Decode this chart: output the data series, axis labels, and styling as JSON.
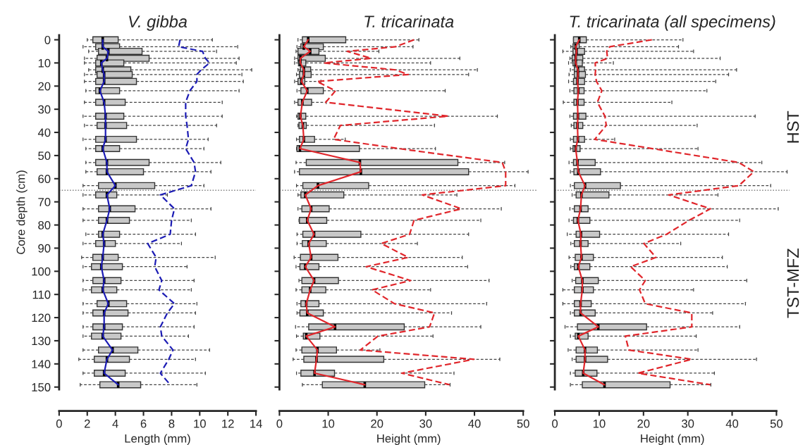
{
  "chart_data": [
    {
      "type": "box",
      "title": "V. gibba",
      "xlabel": "Length (mm)",
      "ylabel": "Core depth (cm)",
      "orientation": "horizontal",
      "x": [
        0,
        3,
        5,
        8,
        10,
        13,
        15,
        18,
        22,
        27,
        33,
        37,
        43,
        47,
        53,
        57,
        63,
        67,
        73,
        78,
        84,
        88,
        94,
        98,
        104,
        108,
        114,
        118,
        124,
        128,
        134,
        138,
        144,
        149
      ],
      "boxes": [
        {
          "low": 2.0,
          "q1": 2.4,
          "median": 3.1,
          "q3": 4.2,
          "high": 10.9
        },
        {
          "low": 1.7,
          "q1": 2.6,
          "median": 3.1,
          "q3": 4.3,
          "high": 12.7
        },
        {
          "low": 2.1,
          "q1": 2.8,
          "median": 3.5,
          "q3": 5.9,
          "high": 11.2
        },
        {
          "low": 1.8,
          "q1": 2.7,
          "median": 3.4,
          "q3": 6.4,
          "high": 12.8
        },
        {
          "low": 1.8,
          "q1": 2.6,
          "median": 3.0,
          "q3": 4.6,
          "high": 12.6
        },
        {
          "low": 2.1,
          "q1": 2.6,
          "median": 3.1,
          "q3": 5.1,
          "high": 13.7
        },
        {
          "low": 1.8,
          "q1": 2.7,
          "median": 3.2,
          "q3": 5.2,
          "high": 13.0
        },
        {
          "low": 1.8,
          "q1": 2.6,
          "median": 3.2,
          "q3": 5.5,
          "high": 13.1
        },
        {
          "low": 1.9,
          "q1": 2.6,
          "median": 2.9,
          "q3": 4.3,
          "high": 12.8
        },
        {
          "low": 1.8,
          "q1": 2.6,
          "median": 3.2,
          "q3": 4.7,
          "high": 11.6
        },
        {
          "low": 1.7,
          "q1": 2.6,
          "median": 3.3,
          "q3": 4.6,
          "high": 11.6
        },
        {
          "low": 1.8,
          "q1": 2.7,
          "median": 3.3,
          "q3": 4.8,
          "high": 11.2
        },
        {
          "low": 1.7,
          "q1": 2.6,
          "median": 3.3,
          "q3": 5.5,
          "high": 10.6
        },
        {
          "low": 1.9,
          "q1": 2.6,
          "median": 3.1,
          "q3": 4.3,
          "high": 10.3
        },
        {
          "low": 1.9,
          "q1": 2.6,
          "median": 3.4,
          "q3": 6.4,
          "high": 11.5
        },
        {
          "low": 1.9,
          "q1": 2.7,
          "median": 3.4,
          "q3": 6.0,
          "high": 10.8
        },
        {
          "low": 1.7,
          "q1": 2.8,
          "median": 4.0,
          "q3": 6.8,
          "high": 10.3
        },
        {
          "low": 1.7,
          "q1": 2.6,
          "median": 3.4,
          "q3": 4.1,
          "high": 7.7
        },
        {
          "low": 1.7,
          "q1": 2.8,
          "median": 3.6,
          "q3": 5.4,
          "high": 10.8
        },
        {
          "low": 1.7,
          "q1": 2.8,
          "median": 3.4,
          "q3": 5.0,
          "high": 9.4
        },
        {
          "low": 1.9,
          "q1": 2.8,
          "median": 3.1,
          "q3": 4.3,
          "high": 9.7
        },
        {
          "low": 1.7,
          "q1": 2.6,
          "median": 3.2,
          "q3": 4.0,
          "high": 8.7
        },
        {
          "low": 1.6,
          "q1": 2.4,
          "median": 3.1,
          "q3": 4.2,
          "high": 11.1
        },
        {
          "low": 1.7,
          "q1": 2.3,
          "median": 3.0,
          "q3": 4.5,
          "high": 9.1
        },
        {
          "low": 1.7,
          "q1": 2.4,
          "median": 3.2,
          "q3": 4.4,
          "high": 9.6
        },
        {
          "low": 1.7,
          "q1": 2.3,
          "median": 3.1,
          "q3": 4.1,
          "high": 9.4
        },
        {
          "low": 1.7,
          "q1": 2.7,
          "median": 3.5,
          "q3": 4.8,
          "high": 9.8
        },
        {
          "low": 1.7,
          "q1": 2.4,
          "median": 3.2,
          "q3": 4.9,
          "high": 9.7
        },
        {
          "low": 1.7,
          "q1": 2.4,
          "median": 3.2,
          "q3": 4.5,
          "high": 9.6
        },
        {
          "low": 1.7,
          "q1": 2.3,
          "median": 3.1,
          "q3": 4.4,
          "high": 9.2
        },
        {
          "low": 1.7,
          "q1": 2.8,
          "median": 3.8,
          "q3": 5.6,
          "high": 10.7
        },
        {
          "low": 1.4,
          "q1": 2.5,
          "median": 3.4,
          "q3": 5.0,
          "high": 9.7
        },
        {
          "low": 1.7,
          "q1": 2.5,
          "median": 3.2,
          "q3": 4.7,
          "high": 10.4
        },
        {
          "low": 1.5,
          "q1": 2.9,
          "median": 4.2,
          "q3": 5.8,
          "high": 9.8
        }
      ],
      "series": [
        {
          "type": "line",
          "color": "#1c1cb4",
          "line_style": "solid",
          "values": [
            3.1,
            3.1,
            3.5,
            3.4,
            3.0,
            3.1,
            3.2,
            3.2,
            2.9,
            3.2,
            3.3,
            3.3,
            3.3,
            3.1,
            3.4,
            3.4,
            4.0,
            3.4,
            3.6,
            3.4,
            3.1,
            3.2,
            3.1,
            3.0,
            3.2,
            3.1,
            3.5,
            3.2,
            3.2,
            3.1,
            3.8,
            3.4,
            3.2,
            4.2
          ]
        },
        {
          "type": "line",
          "color": "#1c1cb4",
          "line_style": "dashed",
          "values": [
            8.6,
            8.5,
            10.2,
            10.4,
            10.7,
            10.1,
            9.8,
            9.8,
            9.3,
            9.0,
            9.0,
            9.1,
            9.2,
            9.0,
            9.6,
            9.7,
            9.4,
            7.2,
            8.2,
            8.0,
            7.9,
            6.3,
            6.9,
            6.8,
            7.3,
            7.1,
            8.2,
            7.7,
            7.2,
            7.3,
            8.1,
            7.8,
            7.2,
            7.9
          ]
        }
      ],
      "xlim": [
        0,
        14
      ],
      "xticks": [
        0,
        2,
        4,
        6,
        8,
        10,
        12,
        14
      ],
      "ylim": [
        151,
        -2
      ],
      "yticks": [
        0,
        10,
        20,
        30,
        40,
        50,
        60,
        70,
        80,
        90,
        100,
        110,
        120,
        130,
        140,
        150
      ],
      "ref_lines": [
        {
          "axis": "y",
          "value": 65,
          "color": "#808080",
          "line_style": "dotted"
        }
      ]
    },
    {
      "type": "box",
      "title": "T. tricarinata",
      "xlabel": "Height (mm)",
      "orientation": "horizontal",
      "x": [
        0,
        3,
        5,
        8,
        10,
        13,
        15,
        18,
        22,
        27,
        33,
        37,
        43,
        47,
        53,
        57,
        63,
        67,
        73,
        78,
        84,
        88,
        94,
        98,
        104,
        108,
        114,
        118,
        124,
        128,
        134,
        138,
        144,
        149
      ],
      "boxes": [
        {
          "low": 3.8,
          "q1": 4.7,
          "median": 5.9,
          "q3": 13.6,
          "high": 28.6
        },
        {
          "low": 3.6,
          "q1": 4.4,
          "median": 5.0,
          "q3": 9.0,
          "high": 27.4
        },
        {
          "low": 3.4,
          "q1": 3.8,
          "median": 6.3,
          "q3": 8.1,
          "high": 20.4
        },
        {
          "low": 3.1,
          "q1": 3.8,
          "median": 4.3,
          "q3": 9.4,
          "high": 37.0
        },
        {
          "low": 3.1,
          "q1": 3.9,
          "median": 4.3,
          "q3": 5.4,
          "high": 31.0
        },
        {
          "low": 3.8,
          "q1": 4.3,
          "median": 5.0,
          "q3": 6.4,
          "high": 40.6
        },
        {
          "low": 3.5,
          "q1": 4.1,
          "median": 5.0,
          "q3": 6.5,
          "high": 38.8
        },
        {
          "low": 3.1,
          "q1": 3.8,
          "median": 4.5,
          "q3": 5.2,
          "high": 8.5
        },
        {
          "low": 3.6,
          "q1": 4.4,
          "median": 5.7,
          "q3": 9.0,
          "high": 34.0
        },
        {
          "low": 3.1,
          "q1": 3.8,
          "median": 4.7,
          "q3": 6.6,
          "high": 9.6
        },
        {
          "low": 3.5,
          "q1": 3.8,
          "median": 4.3,
          "q3": 5.4,
          "high": 44.7
        },
        {
          "low": 3.8,
          "q1": 4.0,
          "median": 4.8,
          "q3": 5.5,
          "high": 31.8
        },
        {
          "low": 3.5,
          "q1": 4.1,
          "median": 5.0,
          "q3": 7.2,
          "high": 13.5
        },
        {
          "low": 3.5,
          "q1": 3.6,
          "median": 4.2,
          "q3": 16.4,
          "high": 32.0
        },
        {
          "low": 3.4,
          "q1": 5.5,
          "median": 16.5,
          "q3": 36.6,
          "high": 46.2
        },
        {
          "low": 3.1,
          "q1": 4.1,
          "median": 16.7,
          "q3": 38.8,
          "high": 51.0
        },
        {
          "low": 3.5,
          "q1": 4.8,
          "median": 7.9,
          "q3": 18.3,
          "high": 48.3
        },
        {
          "low": 3.8,
          "q1": 4.4,
          "median": 5.3,
          "q3": 13.2,
          "high": 36.4
        },
        {
          "low": 3.8,
          "q1": 4.6,
          "median": 6.5,
          "q3": 10.2,
          "high": 45.5
        },
        {
          "low": 4.0,
          "q1": 4.1,
          "median": 5.7,
          "q3": 9.7,
          "high": 41.3
        },
        {
          "low": 3.6,
          "q1": 4.8,
          "median": 7.1,
          "q3": 16.7,
          "high": 38.8
        },
        {
          "low": 3.6,
          "q1": 4.7,
          "median": 6.0,
          "q3": 9.6,
          "high": 28.3
        },
        {
          "low": 3.0,
          "q1": 4.3,
          "median": 6.5,
          "q3": 12.0,
          "high": 37.5
        },
        {
          "low": 3.4,
          "q1": 4.2,
          "median": 5.3,
          "q3": 8.1,
          "high": 38.6
        },
        {
          "low": 4.0,
          "q1": 4.6,
          "median": 7.1,
          "q3": 12.1,
          "high": 43.0
        },
        {
          "low": 3.4,
          "q1": 4.6,
          "median": 6.3,
          "q3": 9.5,
          "high": 31.0
        },
        {
          "low": 3.6,
          "q1": 4.4,
          "median": 5.5,
          "q3": 8.1,
          "high": 42.5
        },
        {
          "low": 3.6,
          "q1": 4.2,
          "median": 5.7,
          "q3": 9.0,
          "high": 35.3
        },
        {
          "low": 3.3,
          "q1": 6.0,
          "median": 11.4,
          "q3": 25.6,
          "high": 41.3
        },
        {
          "low": 3.5,
          "q1": 4.9,
          "median": 5.5,
          "q3": 8.3,
          "high": 31.5
        },
        {
          "low": 3.4,
          "q1": 4.6,
          "median": 7.8,
          "q3": 11.7,
          "high": 20.6
        },
        {
          "low": 2.8,
          "q1": 5.0,
          "median": 7.6,
          "q3": 21.4,
          "high": 45.2
        },
        {
          "low": 3.5,
          "q1": 4.4,
          "median": 7.2,
          "q3": 11.3,
          "high": 35.8
        },
        {
          "low": 4.7,
          "q1": 8.8,
          "median": 17.5,
          "q3": 29.8,
          "high": 35.0
        }
      ],
      "series": [
        {
          "type": "line",
          "color": "#e0262b",
          "line_style": "solid",
          "values": [
            5.9,
            5.0,
            6.3,
            4.3,
            4.3,
            5.0,
            5.0,
            4.5,
            5.7,
            4.7,
            4.3,
            4.8,
            5.0,
            4.2,
            16.5,
            16.7,
            7.9,
            5.3,
            6.5,
            5.7,
            7.1,
            6.0,
            6.5,
            5.3,
            7.1,
            6.3,
            5.5,
            5.7,
            11.4,
            5.5,
            7.8,
            7.6,
            7.2,
            17.5
          ]
        },
        {
          "type": "line",
          "color": "#e0262b",
          "line_style": "dashed",
          "values": [
            27.6,
            23.8,
            13.9,
            18.8,
            9.1,
            23.8,
            26.4,
            7.7,
            11.5,
            9.5,
            34.6,
            12.5,
            11.1,
            24.5,
            45.7,
            46.4,
            46.4,
            29.3,
            37.3,
            27.6,
            26.7,
            20.9,
            26.4,
            17.8,
            26.9,
            19.0,
            23.6,
            31.8,
            30.8,
            20.2,
            16.6,
            39.9,
            25.1,
            34.9
          ]
        }
      ],
      "xlim": [
        0,
        53
      ],
      "xticks": [
        0,
        10,
        20,
        30,
        40,
        50
      ],
      "ylim": [
        151,
        -2
      ],
      "yticks": [
        0,
        10,
        20,
        30,
        40,
        50,
        60,
        70,
        80,
        90,
        100,
        110,
        120,
        130,
        140,
        150
      ],
      "tick_labels": "x",
      "ref_lines": [
        {
          "axis": "y",
          "value": 65,
          "color": "#808080",
          "line_style": "dotted"
        }
      ]
    },
    {
      "type": "box",
      "title": "T. tricarinata (all specimens)",
      "xlabel": "Height (mm)",
      "orientation": "horizontal",
      "x": [
        0,
        3,
        5,
        8,
        10,
        13,
        15,
        18,
        22,
        27,
        33,
        37,
        43,
        47,
        53,
        57,
        63,
        67,
        73,
        78,
        84,
        88,
        94,
        98,
        104,
        108,
        114,
        118,
        124,
        128,
        134,
        138,
        144,
        149
      ],
      "boxes": [
        {
          "low": 4.2,
          "q1": 4.2,
          "median": 5.5,
          "q3": 7.1,
          "high": 28.9
        },
        {
          "low": 3.6,
          "q1": 4.1,
          "median": 4.7,
          "q3": 5.5,
          "high": 27.9
        },
        {
          "low": 1.8,
          "q1": 4.1,
          "median": 4.9,
          "q3": 6.7,
          "high": 31.3
        },
        {
          "low": 3.4,
          "q1": 3.9,
          "median": 4.7,
          "q3": 6.3,
          "high": 37.3
        },
        {
          "low": 3.1,
          "q1": 4.1,
          "median": 4.7,
          "q3": 6.2,
          "high": 13.2
        },
        {
          "low": 3.5,
          "q1": 4.4,
          "median": 5.2,
          "q3": 6.7,
          "high": 41.0
        },
        {
          "low": 3.2,
          "q1": 4.4,
          "median": 5.2,
          "q3": 6.9,
          "high": 39.2
        },
        {
          "low": 3.1,
          "q1": 4.2,
          "median": 5.1,
          "q3": 6.7,
          "high": 36.3
        },
        {
          "low": 3.4,
          "q1": 4.3,
          "median": 5.3,
          "q3": 6.6,
          "high": 34.3
        },
        {
          "low": 1.9,
          "q1": 4.3,
          "median": 5.1,
          "q3": 6.6,
          "high": 26.4
        },
        {
          "low": 3.4,
          "q1": 4.2,
          "median": 5.2,
          "q3": 7.0,
          "high": 45.2
        },
        {
          "low": 3.7,
          "q1": 4.3,
          "median": 5.1,
          "q3": 6.3,
          "high": 32.1
        },
        {
          "low": 3.5,
          "q1": 4.2,
          "median": 5.2,
          "q3": 6.7,
          "high": 13.5
        },
        {
          "low": 3.5,
          "q1": 4.1,
          "median": 4.7,
          "q3": 5.7,
          "high": 32.3
        },
        {
          "low": 3.2,
          "q1": 4.2,
          "median": 5.1,
          "q3": 9.1,
          "high": 46.7
        },
        {
          "low": 3.5,
          "q1": 4.3,
          "median": 5.3,
          "q3": 10.3,
          "high": 52.4
        },
        {
          "low": 3.5,
          "q1": 4.4,
          "median": 6.8,
          "q3": 14.8,
          "high": 48.7
        },
        {
          "low": 3.9,
          "q1": 4.8,
          "median": 6.0,
          "q3": 12.2,
          "high": 36.8
        },
        {
          "low": 3.4,
          "q1": 4.4,
          "median": 5.8,
          "q3": 7.5,
          "high": 50.4
        },
        {
          "low": 3.2,
          "q1": 4.2,
          "median": 5.2,
          "q3": 7.9,
          "high": 41.7
        },
        {
          "low": 2.8,
          "q1": 4.8,
          "median": 5.9,
          "q3": 10.1,
          "high": 39.2
        },
        {
          "low": 3.6,
          "q1": 4.4,
          "median": 5.8,
          "q3": 7.5,
          "high": 28.4
        },
        {
          "low": 3.2,
          "q1": 4.6,
          "median": 6.0,
          "q3": 8.7,
          "high": 37.8
        },
        {
          "low": 3.6,
          "q1": 4.4,
          "median": 5.3,
          "q3": 7.9,
          "high": 38.9
        },
        {
          "low": 3.9,
          "q1": 4.7,
          "median": 6.2,
          "q3": 9.8,
          "high": 43.3
        },
        {
          "low": 1.8,
          "q1": 4.4,
          "median": 6.2,
          "q3": 8.7,
          "high": 31.3
        },
        {
          "low": 1.8,
          "q1": 4.4,
          "median": 5.8,
          "q3": 8.2,
          "high": 43.0
        },
        {
          "low": 3.5,
          "q1": 4.4,
          "median": 5.8,
          "q3": 9.1,
          "high": 35.6
        },
        {
          "low": 2.3,
          "q1": 5.1,
          "median": 9.8,
          "q3": 20.7,
          "high": 41.7
        },
        {
          "low": 3.5,
          "q1": 4.6,
          "median": 5.3,
          "q3": 7.5,
          "high": 31.9
        },
        {
          "low": 3.0,
          "q1": 4.8,
          "median": 6.8,
          "q3": 9.6,
          "high": 32.3
        },
        {
          "low": 3.9,
          "q1": 4.8,
          "median": 6.8,
          "q3": 11.9,
          "high": 45.5
        },
        {
          "low": 3.5,
          "q1": 4.6,
          "median": 6.4,
          "q3": 9.5,
          "high": 36.0
        },
        {
          "low": 3.5,
          "q1": 6.2,
          "median": 11.2,
          "q3": 26.0,
          "high": 35.2
        }
      ],
      "series": [
        {
          "type": "line",
          "color": "#e0262b",
          "line_style": "solid",
          "values": [
            5.5,
            4.7,
            4.9,
            4.7,
            4.7,
            5.2,
            5.2,
            5.1,
            5.3,
            5.1,
            5.2,
            5.1,
            5.2,
            4.7,
            5.1,
            5.3,
            6.8,
            6.0,
            5.8,
            5.2,
            5.9,
            5.8,
            6.0,
            5.3,
            6.2,
            6.2,
            5.8,
            5.8,
            9.8,
            5.3,
            6.8,
            6.8,
            6.4,
            11.2
          ]
        },
        {
          "type": "line",
          "color": "#e0262b",
          "line_style": "dashed",
          "values": [
            21.9,
            12.4,
            11.7,
            11.9,
            9.1,
            9.2,
            9.1,
            9.4,
            10.6,
            9.6,
            11.3,
            11.6,
            9.0,
            22.0,
            41.5,
            44.9,
            41.5,
            25.7,
            35.1,
            30.3,
            25.2,
            20.1,
            22.8,
            17.1,
            20.4,
            19.1,
            20.4,
            30.9,
            30.9,
            15.9,
            16.7,
            30.9,
            18.8,
            35.1
          ]
        }
      ],
      "xlim": [
        0,
        53
      ],
      "xticks": [
        0,
        10,
        20,
        30,
        40,
        50
      ],
      "ylim": [
        151,
        -2
      ],
      "yticks": [
        0,
        10,
        20,
        30,
        40,
        50,
        60,
        70,
        80,
        90,
        100,
        110,
        120,
        130,
        140,
        150
      ],
      "tick_labels": "x",
      "ref_lines": [
        {
          "axis": "y",
          "value": 65,
          "color": "#808080",
          "line_style": "dotted"
        }
      ],
      "annotations": [
        "HST",
        "TST-MFZ"
      ]
    }
  ]
}
